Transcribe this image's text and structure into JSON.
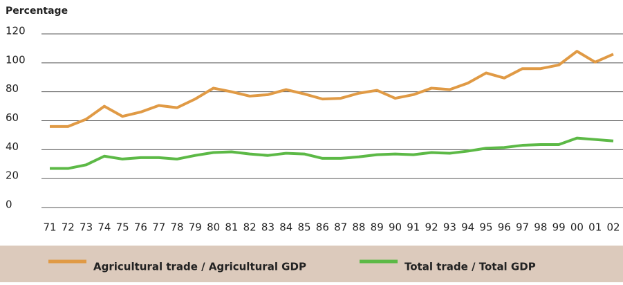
{
  "chart_data": {
    "type": "line",
    "y_axis_label": "Percentage",
    "categories": [
      "71",
      "72",
      "73",
      "74",
      "75",
      "76",
      "77",
      "78",
      "79",
      "80",
      "81",
      "82",
      "83",
      "84",
      "85",
      "86",
      "87",
      "88",
      "89",
      "90",
      "91",
      "92",
      "93",
      "94",
      "95",
      "96",
      "97",
      "98",
      "99",
      "00",
      "01",
      "02"
    ],
    "series": [
      {
        "name": "Agricultural trade / Agricultural GDP",
        "color": "#e09a45",
        "values": [
          56,
          56,
          61,
          70,
          63,
          66,
          70.5,
          69,
          75,
          82.5,
          80,
          77,
          78,
          81.5,
          78.5,
          75,
          75.5,
          79,
          81,
          75.5,
          78,
          82.5,
          81.5,
          86,
          93,
          89.5,
          96,
          96,
          98.5,
          108,
          100.5,
          106
        ]
      },
      {
        "name": "Total trade / Total GDP",
        "color": "#5cb946",
        "values": [
          27,
          27,
          29.5,
          35.5,
          33.5,
          34.5,
          34.5,
          33.5,
          36,
          38,
          38.5,
          37,
          36,
          37.5,
          37,
          34,
          34,
          35,
          36.5,
          37,
          36.5,
          38,
          37.5,
          39,
          41,
          41.5,
          43,
          43.5,
          43.5,
          48,
          47,
          46
        ]
      }
    ],
    "ylim": [
      0,
      120
    ],
    "yticks": [
      0,
      20,
      40,
      60,
      80,
      100,
      120
    ],
    "grid": true
  }
}
